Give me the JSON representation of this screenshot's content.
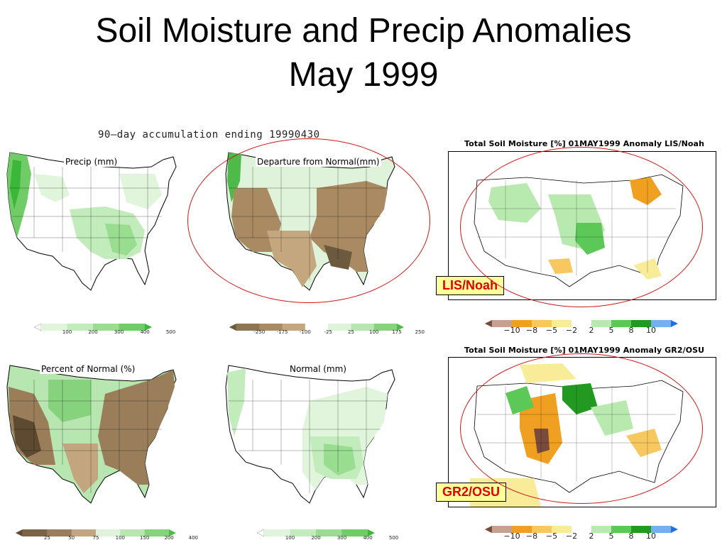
{
  "slide": {
    "title_line1": "Soil Moisture and Precip Anomalies",
    "title_line2": "May 1999"
  },
  "caption": "90—day accumulation ending 19990430",
  "maps": {
    "precip": {
      "label": "Precip (mm)"
    },
    "departure": {
      "label": "Departure from Normal(mm)"
    },
    "percent": {
      "label": "Percent of Normal (%)"
    },
    "normal": {
      "label": "Normal (mm)"
    }
  },
  "soil": {
    "lis": {
      "title": "Total Soil Moisture [%] 01MAY1999 Anomaly LIS/Noah",
      "tag": "LIS/Noah"
    },
    "gr2": {
      "title": "Total Soil Moisture [%] 01MAY1999 Anomaly GR2/OSU",
      "tag": "GR2/OSU"
    }
  },
  "colorbars": {
    "precip": {
      "ticks": [
        "100",
        "200",
        "300",
        "400",
        "500"
      ],
      "colors": [
        "#ffffff",
        "#e0f5dc",
        "#c2ecbc",
        "#98dd90",
        "#6fcc66",
        "#3cb73a"
      ]
    },
    "departure": {
      "ticks": [
        "-250",
        "-175",
        "-100",
        "-25",
        "25",
        "100",
        "175",
        "250"
      ],
      "colors": [
        "#6b5a3e",
        "#8f7653",
        "#a98a63",
        "#c5a77f",
        "#ffffff",
        "#dff3da",
        "#b8e6b0",
        "#86d27d",
        "#4eba49"
      ]
    },
    "percent": {
      "ticks": [
        "25",
        "50",
        "75",
        "100",
        "150",
        "200",
        "400"
      ],
      "colors": [
        "#5d4a30",
        "#7c6446",
        "#9a7e5a",
        "#c3a67f",
        "#dff3da",
        "#b8e6b0",
        "#86d27d",
        "#4eba49"
      ]
    },
    "normal": {
      "ticks": [
        "100",
        "200",
        "300",
        "400",
        "500"
      ],
      "colors": [
        "#ffffff",
        "#e0f5dc",
        "#c2ecbc",
        "#98dd90",
        "#6fcc66",
        "#3cb73a"
      ]
    },
    "soil": {
      "ticks": [
        "−10",
        "−8",
        "−5",
        "−2",
        "2",
        "5",
        "8",
        "10"
      ],
      "colors": [
        "#7a4a3a",
        "#c8a090",
        "#f0a020",
        "#f8c860",
        "#f8ec98",
        "#ffffff",
        "#b8eab0",
        "#5cc858",
        "#229a22",
        "#78aef0",
        "#2070e0"
      ]
    }
  }
}
